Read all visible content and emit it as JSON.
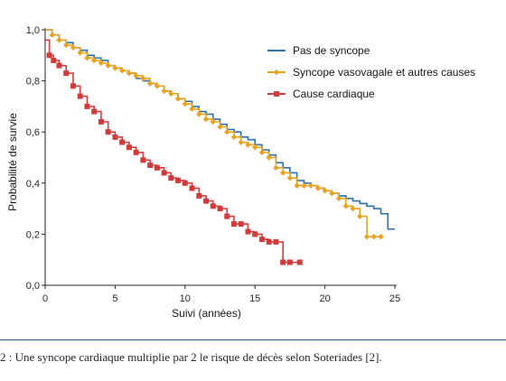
{
  "chart_data": {
    "type": "line",
    "step": true,
    "xlabel": "Suivi (années)",
    "ylabel": "Probabilité de survie",
    "xlim": [
      0,
      25
    ],
    "ylim": [
      0,
      1.0
    ],
    "xticks": [
      0,
      5,
      10,
      15,
      20,
      25
    ],
    "xtick_labels": [
      "0",
      "5",
      "10",
      "15",
      "20",
      "25"
    ],
    "yticks": [
      0,
      0.2,
      0.4,
      0.6,
      0.8,
      1.0
    ],
    "ytick_labels": [
      "0,0",
      "0,2",
      "0,4",
      "0,6",
      "0,8",
      "1,0"
    ],
    "grid": false,
    "legend_position": "top-right",
    "series": [
      {
        "name": "Pas de syncope",
        "color": "#2a6fa8",
        "marker": "none",
        "x": [
          0,
          0.5,
          1,
          1.5,
          2,
          2.5,
          3,
          3.5,
          4,
          4.5,
          5,
          5.5,
          6,
          6.5,
          7,
          7.5,
          8,
          8.5,
          9,
          9.5,
          10,
          10.5,
          11,
          11.5,
          12,
          12.5,
          13,
          13.5,
          14,
          14.5,
          15,
          15.5,
          16,
          16.5,
          17,
          17.5,
          18,
          18.5,
          19,
          19.5,
          20,
          20.5,
          21,
          21.5,
          22,
          22.5,
          23,
          23.5,
          24,
          24.5,
          25
        ],
        "y": [
          1.0,
          0.98,
          0.96,
          0.95,
          0.93,
          0.92,
          0.9,
          0.89,
          0.88,
          0.86,
          0.85,
          0.84,
          0.83,
          0.81,
          0.8,
          0.79,
          0.78,
          0.76,
          0.75,
          0.73,
          0.72,
          0.7,
          0.68,
          0.67,
          0.65,
          0.63,
          0.61,
          0.6,
          0.58,
          0.57,
          0.55,
          0.53,
          0.51,
          0.48,
          0.46,
          0.44,
          0.41,
          0.4,
          0.39,
          0.38,
          0.37,
          0.36,
          0.35,
          0.34,
          0.33,
          0.32,
          0.31,
          0.3,
          0.28,
          0.22,
          0.22
        ]
      },
      {
        "name": "Syncope vasovagale et autres causes",
        "color": "#e8a21c",
        "marker": "diamond",
        "x": [
          0,
          0.5,
          1,
          1.5,
          2,
          2.5,
          3,
          3.5,
          4,
          4.5,
          5,
          5.5,
          6,
          6.5,
          7,
          7.5,
          8,
          8.5,
          9,
          9.5,
          10,
          10.5,
          11,
          11.5,
          12,
          12.5,
          13,
          13.5,
          14,
          14.5,
          15,
          15.5,
          16,
          16.5,
          17,
          17.5,
          18,
          18.5,
          19,
          19.5,
          20,
          20.5,
          21,
          21.5,
          22,
          22.5,
          23,
          23.5,
          24
        ],
        "y": [
          1.0,
          0.98,
          0.96,
          0.94,
          0.93,
          0.91,
          0.89,
          0.88,
          0.87,
          0.86,
          0.85,
          0.84,
          0.83,
          0.82,
          0.81,
          0.79,
          0.78,
          0.76,
          0.75,
          0.73,
          0.71,
          0.69,
          0.67,
          0.65,
          0.64,
          0.62,
          0.6,
          0.58,
          0.56,
          0.55,
          0.54,
          0.52,
          0.5,
          0.46,
          0.44,
          0.42,
          0.39,
          0.39,
          0.39,
          0.38,
          0.37,
          0.36,
          0.34,
          0.31,
          0.3,
          0.27,
          0.19,
          0.19,
          0.19
        ]
      },
      {
        "name": "Cause cardiaque",
        "color": "#d03a3a",
        "marker": "square",
        "x": [
          0,
          0.3,
          0.6,
          1,
          1.5,
          2,
          2.5,
          3,
          3.5,
          4,
          4.5,
          5,
          5.5,
          6,
          6.5,
          7,
          7.5,
          8,
          8.5,
          9,
          9.5,
          10,
          10.5,
          11,
          11.5,
          12,
          12.5,
          13,
          13.5,
          14,
          14.5,
          15,
          15.5,
          16,
          16.5,
          17,
          17.5,
          18.2
        ],
        "y": [
          0.96,
          0.9,
          0.88,
          0.86,
          0.83,
          0.78,
          0.74,
          0.7,
          0.68,
          0.64,
          0.6,
          0.58,
          0.56,
          0.54,
          0.52,
          0.49,
          0.47,
          0.46,
          0.44,
          0.42,
          0.41,
          0.4,
          0.38,
          0.35,
          0.33,
          0.31,
          0.3,
          0.27,
          0.24,
          0.24,
          0.21,
          0.2,
          0.18,
          0.17,
          0.17,
          0.09,
          0.09,
          0.09
        ]
      }
    ]
  },
  "caption": {
    "text": "2 : Une syncope cardiaque multiplie par 2 le risque de décès selon Soteriades [2]."
  }
}
